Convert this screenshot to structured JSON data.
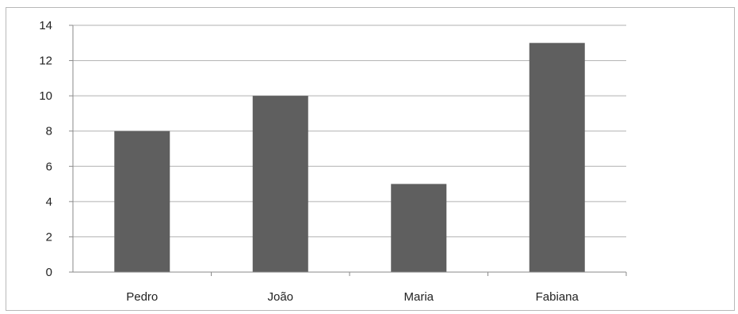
{
  "chart_data": {
    "type": "bar",
    "title": "",
    "xlabel": "",
    "ylabel": "",
    "categories": [
      "Pedro",
      "João",
      "Maria",
      "Fabiana"
    ],
    "values": [
      8,
      10,
      5,
      13
    ],
    "ylim": [
      0,
      14
    ],
    "yticks": [
      "0",
      "2",
      "4",
      "6",
      "8",
      "10",
      "12",
      "14"
    ],
    "grid": true,
    "legend": "none",
    "colors": {
      "bar": "#5f5f5f",
      "grid": "#b0b0b0",
      "axis": "#8a8a8a"
    }
  }
}
